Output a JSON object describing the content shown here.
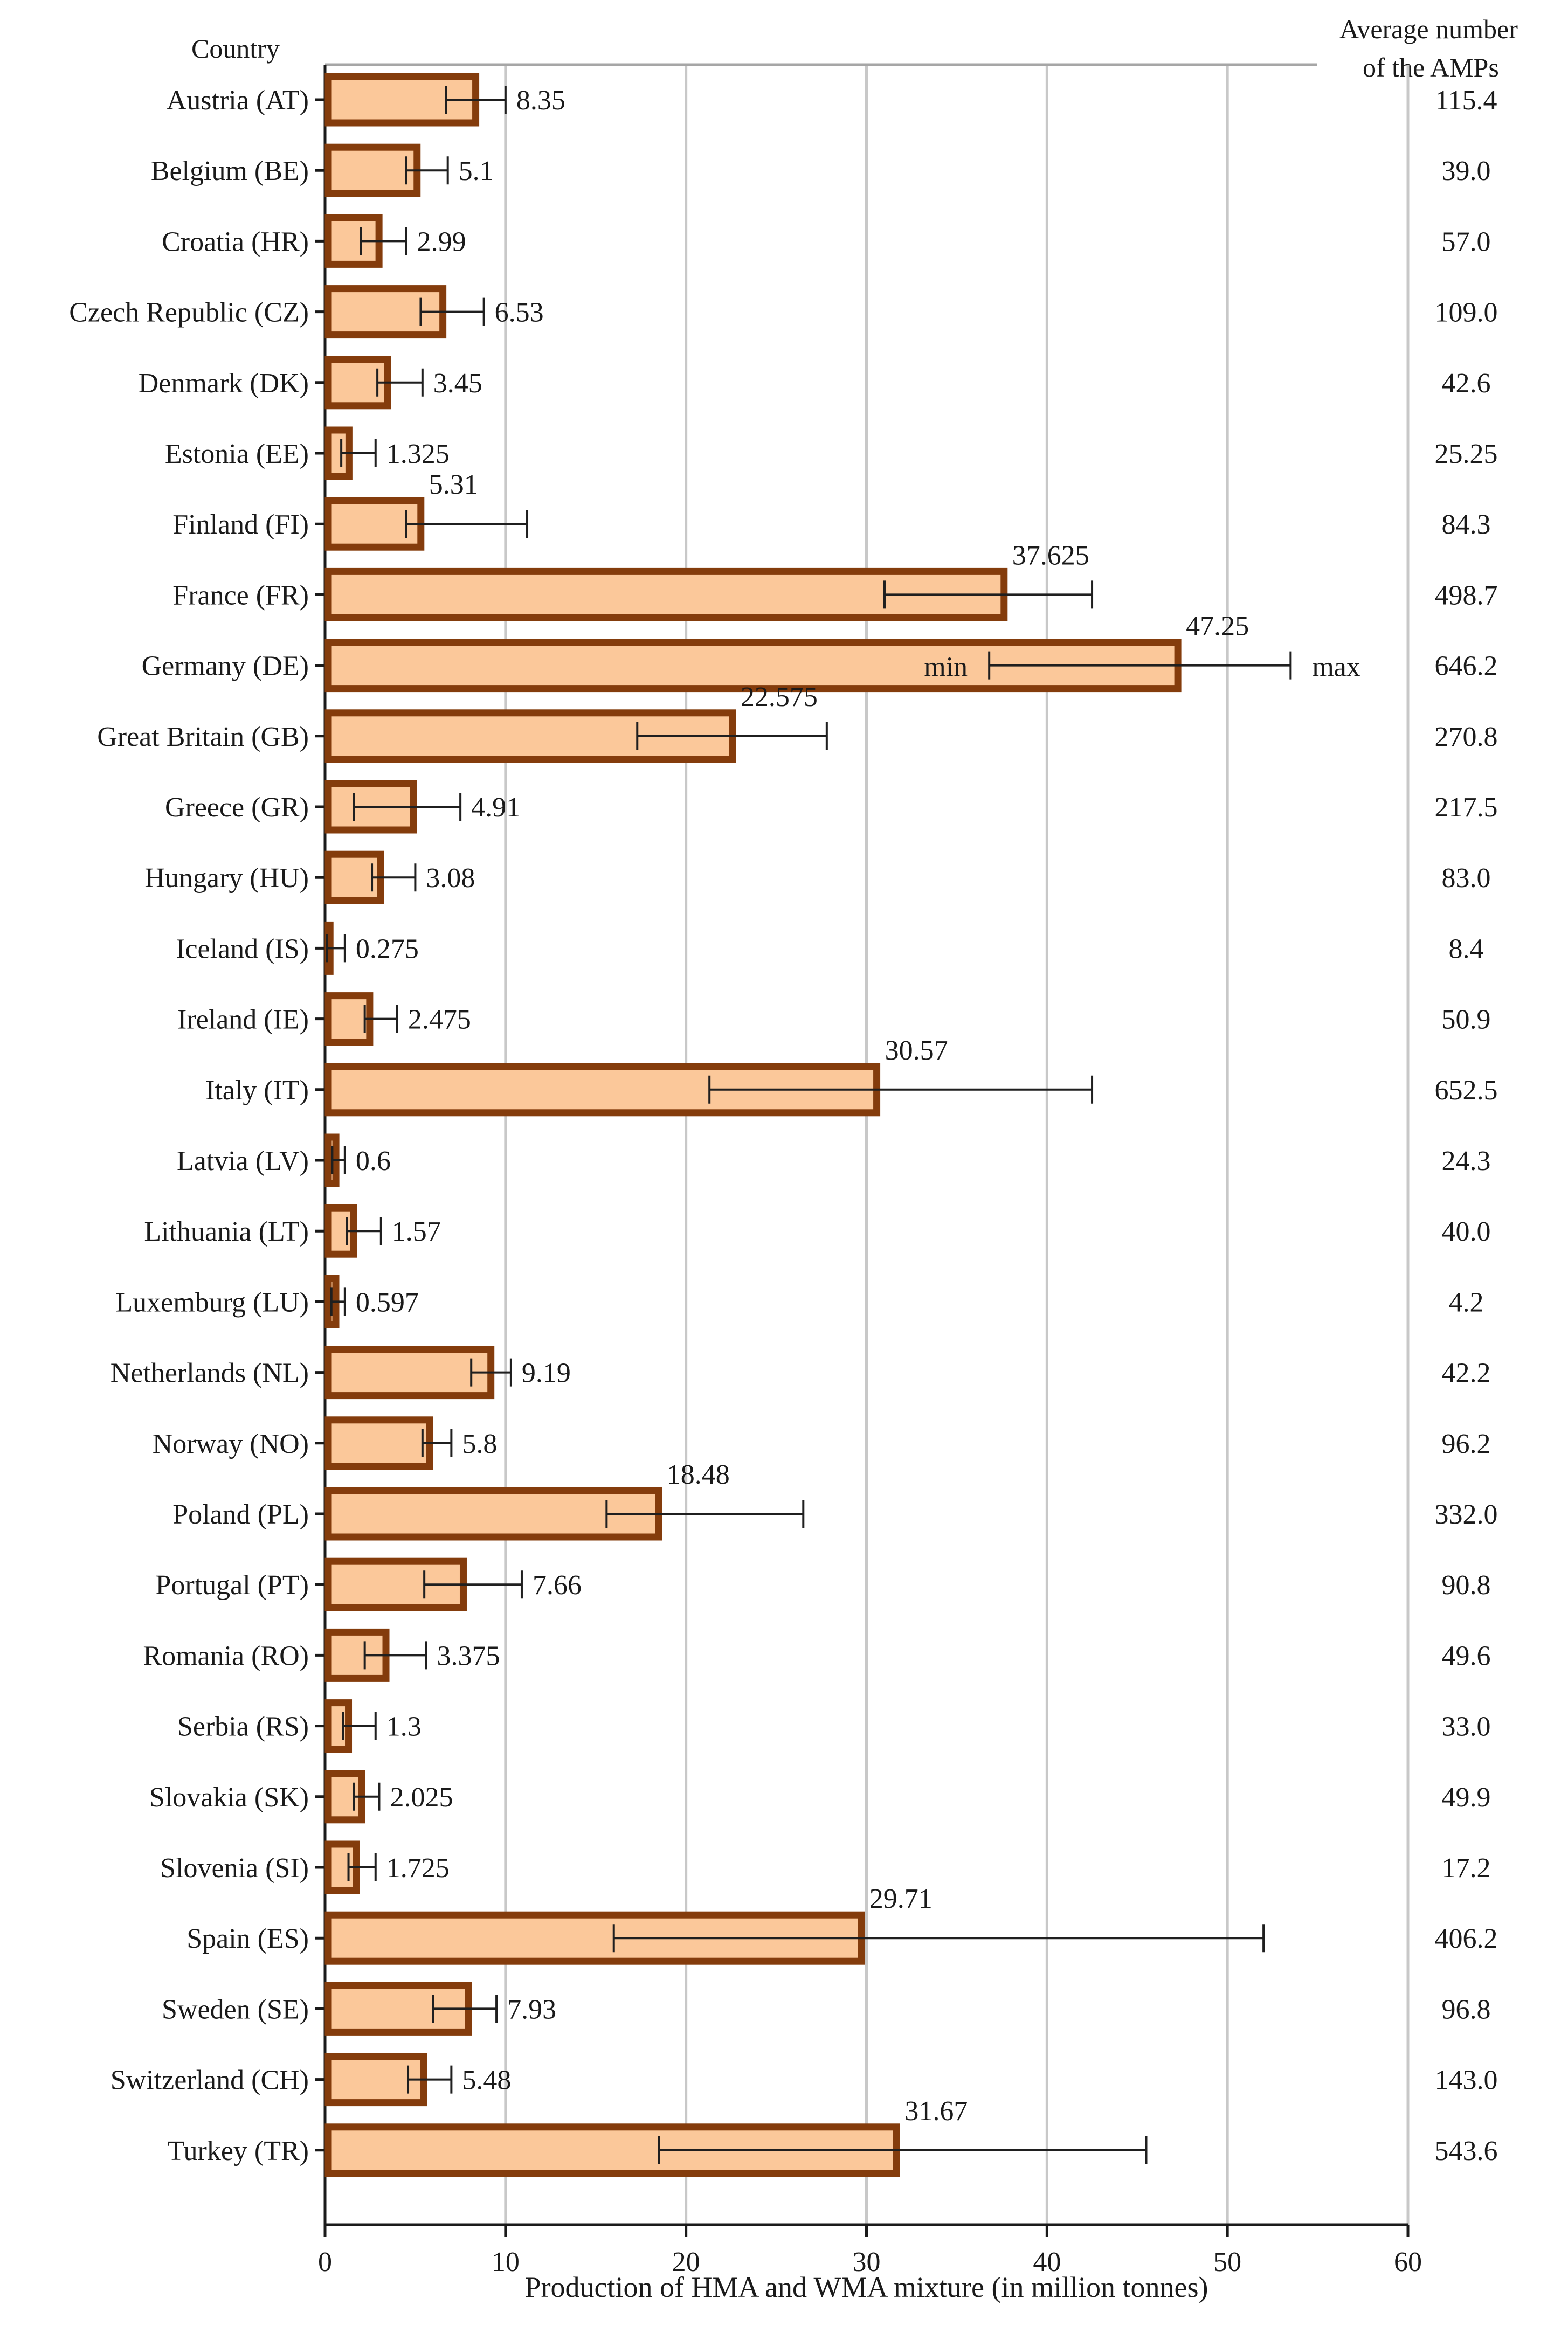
{
  "chart_data": {
    "type": "bar",
    "orientation": "horizontal",
    "left_header": "Country",
    "right_header_line1": "Average number",
    "right_header_line2": "of the AMPs",
    "xlabel": "Production of HMA and WMA mixture (in million tonnes)",
    "xlim": [
      0,
      60
    ],
    "xticks": [
      0,
      10,
      20,
      30,
      40,
      50,
      60
    ],
    "grid": "vertical",
    "range_labels": {
      "min": "min",
      "max": "max"
    },
    "range_labels_row": 8,
    "colors": {
      "bar_fill": "#FBC89A",
      "bar_edge": "#843C0C",
      "error": "#1f1f1f",
      "grid": "#c8c8c8"
    },
    "categories": [
      "Austria (AT)",
      "Belgium (BE)",
      "Croatia (HR)",
      "Czech Republic (CZ)",
      "Denmark (DK)",
      "Estonia (EE)",
      "Finland (FI)",
      "France (FR)",
      "Germany (DE)",
      "Great Britain (GB)",
      "Greece (GR)",
      "Hungary (HU)",
      "Iceland (IS)",
      "Ireland (IE)",
      "Italy (IT)",
      "Latvia (LV)",
      "Lithuania (LT)",
      "Luxemburg (LU)",
      "Netherlands (NL)",
      "Norway (NO)",
      "Poland (PL)",
      "Portugal (PT)",
      "Romania (RO)",
      "Serbia (RS)",
      "Slovakia (SK)",
      "Slovenia (SI)",
      "Spain (ES)",
      "Sweden (SE)",
      "Switzerland (CH)",
      "Turkey (TR)"
    ],
    "values": [
      8.35,
      5.1,
      2.99,
      6.53,
      3.45,
      1.325,
      5.31,
      37.625,
      47.25,
      22.575,
      4.91,
      3.08,
      0.275,
      2.475,
      30.57,
      0.6,
      1.57,
      0.597,
      9.19,
      5.8,
      18.48,
      7.66,
      3.375,
      1.3,
      2.025,
      1.725,
      29.71,
      7.93,
      5.48,
      31.67
    ],
    "value_labels": [
      "8.35",
      "5.1",
      "2.99",
      "6.53",
      "3.45",
      "1.325",
      "5.31",
      "37.625",
      "47.25",
      "22.575",
      "4.91",
      "3.08",
      "0.275",
      "2.475",
      "30.57",
      "0.6",
      "1.57",
      "0.597",
      "9.19",
      "5.8",
      "18.48",
      "7.66",
      "3.375",
      "1.3",
      "2.025",
      "1.725",
      "29.71",
      "7.93",
      "5.48",
      "31.67"
    ],
    "min": [
      6.7,
      4.5,
      2.0,
      5.3,
      2.9,
      0.9,
      4.5,
      31.0,
      36.8,
      17.3,
      1.6,
      2.6,
      0.1,
      2.2,
      21.3,
      0.4,
      1.2,
      0.35,
      8.1,
      5.4,
      15.6,
      5.5,
      2.2,
      1.0,
      1.6,
      1.3,
      16.0,
      6.0,
      4.6,
      18.5
    ],
    "max": [
      10.0,
      6.8,
      4.5,
      8.8,
      5.4,
      2.8,
      11.2,
      42.5,
      53.5,
      27.8,
      7.5,
      5.0,
      1.1,
      4.0,
      42.5,
      1.1,
      3.1,
      1.1,
      10.3,
      7.0,
      26.5,
      10.9,
      5.6,
      2.8,
      3.0,
      2.8,
      52.0,
      9.5,
      7.0,
      45.5
    ],
    "label_above": [
      false,
      false,
      false,
      false,
      false,
      false,
      true,
      true,
      true,
      true,
      false,
      false,
      false,
      false,
      true,
      false,
      false,
      false,
      false,
      false,
      true,
      false,
      false,
      false,
      false,
      false,
      true,
      false,
      false,
      true
    ],
    "amps": [
      "115.4",
      "39.0",
      "57.0",
      "109.0",
      "42.6",
      "25.25",
      "84.3",
      "498.7",
      "646.2",
      "270.8",
      "217.5",
      "83.0",
      "8.4",
      "50.9",
      "652.5",
      "24.3",
      "40.0",
      "4.2",
      "42.2",
      "96.2",
      "332.0",
      "90.8",
      "49.6",
      "33.0",
      "49.9",
      "17.2",
      "406.2",
      "96.8",
      "143.0",
      "543.6"
    ]
  }
}
